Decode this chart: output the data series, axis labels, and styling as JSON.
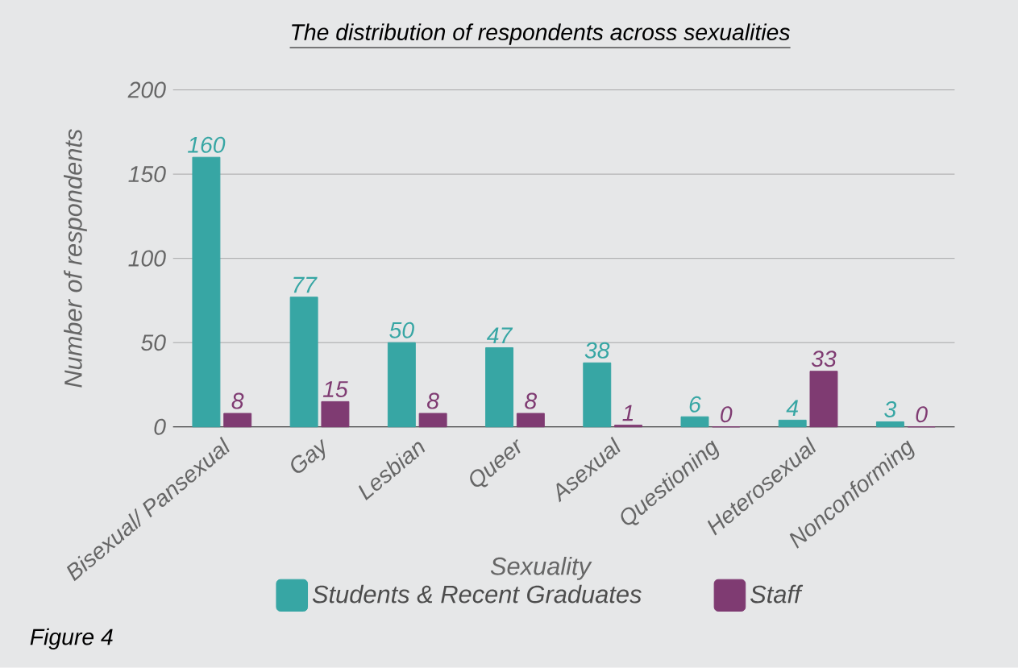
{
  "chart_data": {
    "type": "bar",
    "title": "The distribution of respondents across sexualities",
    "xlabel": "Sexuality",
    "ylabel": "Number of respondents",
    "categories": [
      "Bisexual/ Pansexual",
      "Gay",
      "Lesbian",
      "Queer",
      "Asexual",
      "Questioning",
      "Heterosexual",
      "Nonconforming"
    ],
    "series": [
      {
        "name": "Students & Recent Graduates",
        "color": "#37a6a4",
        "values": [
          160,
          77,
          50,
          47,
          38,
          6,
          4,
          3
        ]
      },
      {
        "name": "Staff",
        "color": "#7f3b72",
        "values": [
          8,
          15,
          8,
          8,
          1,
          0,
          33,
          0
        ]
      }
    ],
    "ylim": [
      0,
      200
    ],
    "yticks": [
      0,
      50,
      100,
      150,
      200
    ],
    "grid": "y",
    "legend": "bottom",
    "data_labels": true,
    "annotations": [
      "Figure 4"
    ]
  }
}
